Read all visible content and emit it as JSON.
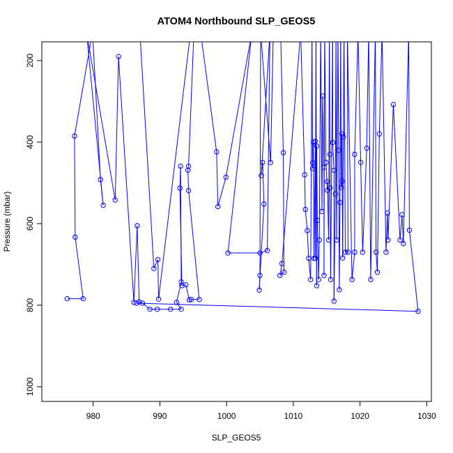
{
  "chart_data": {
    "type": "line",
    "title": "ATOM4 Northbound SLP_GEOS5",
    "xlabel": "SLP_GEOS5",
    "ylabel": "Pressure (mbar)",
    "xlim": [
      972.3,
      1030.7
    ],
    "ylim": [
      1036,
      154
    ],
    "y_reversed": true,
    "x_ticks": [
      980,
      990,
      1000,
      1010,
      1020,
      1030
    ],
    "y_ticks": [
      200,
      400,
      600,
      800,
      1000
    ],
    "grid": false,
    "legend": "none",
    "series_color": "#0000ff",
    "marker": "open-circle",
    "points": [
      [
        976.1,
        784
      ],
      [
        978.5,
        784
      ],
      [
        977.3,
        633
      ],
      [
        977.2,
        385
      ],
      [
        979.9,
        130
      ],
      [
        981.1,
        492
      ],
      [
        981.5,
        555
      ],
      [
        979.0,
        130
      ],
      [
        983.3,
        542
      ],
      [
        983.8,
        190
      ],
      [
        986.1,
        793
      ],
      [
        986.6,
        605
      ],
      [
        986.9,
        792
      ],
      [
        987.4,
        795
      ],
      [
        988.5,
        810
      ],
      [
        989.6,
        810
      ],
      [
        991.6,
        810
      ],
      [
        993.2,
        810
      ],
      [
        992.5,
        793
      ],
      [
        993.2,
        743
      ],
      [
        993.1,
        459
      ],
      [
        993.0,
        513
      ],
      [
        993.3,
        752
      ],
      [
        993.9,
        750
      ],
      [
        994.4,
        787
      ],
      [
        994.7,
        786
      ],
      [
        995.9,
        786
      ],
      [
        994.3,
        519
      ],
      [
        994.2,
        469
      ],
      [
        994.3,
        459
      ],
      [
        995.1,
        130
      ],
      [
        994.6,
        130
      ],
      [
        989.8,
        785
      ],
      [
        989.7,
        688
      ],
      [
        989.1,
        710
      ],
      [
        987.0,
        130
      ],
      [
        996.1,
        130
      ],
      [
        998.5,
        424
      ],
      [
        998.7,
        558
      ],
      [
        999.9,
        486
      ],
      [
        1003.8,
        130
      ],
      [
        1000.2,
        672
      ],
      [
        1005.0,
        672
      ],
      [
        1006.1,
        666
      ],
      [
        1006.5,
        130
      ],
      [
        1005.2,
        482
      ],
      [
        1005.4,
        450
      ],
      [
        1005.6,
        552
      ],
      [
        1004.9,
        763
      ],
      [
        1005.0,
        727
      ],
      [
        1005.1,
        130
      ],
      [
        1006.6,
        450
      ],
      [
        1007.0,
        130
      ],
      [
        1008.1,
        130
      ],
      [
        1008.5,
        426
      ],
      [
        1008.6,
        719
      ],
      [
        1008.0,
        727
      ],
      [
        1008.3,
        698
      ],
      [
        1011.1,
        130
      ],
      [
        1011.7,
        480
      ],
      [
        1011.8,
        565
      ],
      [
        1012.1,
        617
      ],
      [
        1012.3,
        685
      ],
      [
        1012.6,
        737
      ],
      [
        1012.8,
        130
      ],
      [
        1012.9,
        465
      ],
      [
        1012.9,
        451
      ],
      [
        1013.0,
        400
      ],
      [
        1013.1,
        685
      ],
      [
        1013.3,
        398
      ],
      [
        1013.3,
        685
      ],
      [
        1013.4,
        130
      ],
      [
        1013.5,
        752
      ],
      [
        1013.5,
        410
      ],
      [
        1013.6,
        592
      ],
      [
        1013.8,
        737
      ],
      [
        1013.9,
        640
      ],
      [
        1014.1,
        130
      ],
      [
        1014.3,
        570
      ],
      [
        1014.4,
        287
      ],
      [
        1014.6,
        462
      ],
      [
        1014.6,
        727
      ],
      [
        1014.7,
        130
      ],
      [
        1014.9,
        450
      ],
      [
        1015.1,
        518
      ],
      [
        1015.1,
        497
      ],
      [
        1015.3,
        640
      ],
      [
        1015.4,
        130
      ],
      [
        1015.5,
        430
      ],
      [
        1015.5,
        512
      ],
      [
        1015.6,
        737
      ],
      [
        1015.9,
        130
      ],
      [
        1015.9,
        401
      ],
      [
        1016.1,
        469
      ],
      [
        1016.1,
        790
      ],
      [
        1016.3,
        527
      ],
      [
        1016.4,
        130
      ],
      [
        1016.5,
        640
      ],
      [
        1016.7,
        130
      ],
      [
        1016.8,
        420
      ],
      [
        1016.9,
        762
      ],
      [
        1017.0,
        548
      ],
      [
        1017.1,
        130
      ],
      [
        1017.2,
        511
      ],
      [
        1017.3,
        496
      ],
      [
        1017.3,
        380
      ],
      [
        1017.4,
        684
      ],
      [
        1017.5,
        387
      ],
      [
        1017.6,
        130
      ],
      [
        1017.8,
        670
      ],
      [
        1018.2,
        670
      ],
      [
        1018.1,
        130
      ],
      [
        1018.8,
        737
      ],
      [
        1019.2,
        670
      ],
      [
        1019.2,
        430
      ],
      [
        1019.7,
        130
      ],
      [
        1020.1,
        450
      ],
      [
        1020.4,
        670
      ],
      [
        1021.0,
        415
      ],
      [
        1021.3,
        130
      ],
      [
        1021.6,
        737
      ],
      [
        1022.3,
        130
      ],
      [
        1022.4,
        670
      ],
      [
        1022.6,
        719
      ],
      [
        1022.9,
        380
      ],
      [
        1023.3,
        130
      ],
      [
        1023.9,
        670
      ],
      [
        1024.1,
        574
      ],
      [
        1024.2,
        640
      ],
      [
        1025.0,
        308
      ],
      [
        1026.0,
        640
      ],
      [
        1026.3,
        578
      ],
      [
        1026.5,
        649
      ],
      [
        1027.3,
        130
      ],
      [
        1027.4,
        616
      ],
      [
        1028.7,
        815
      ],
      [
        986.5,
        795
      ]
    ]
  }
}
